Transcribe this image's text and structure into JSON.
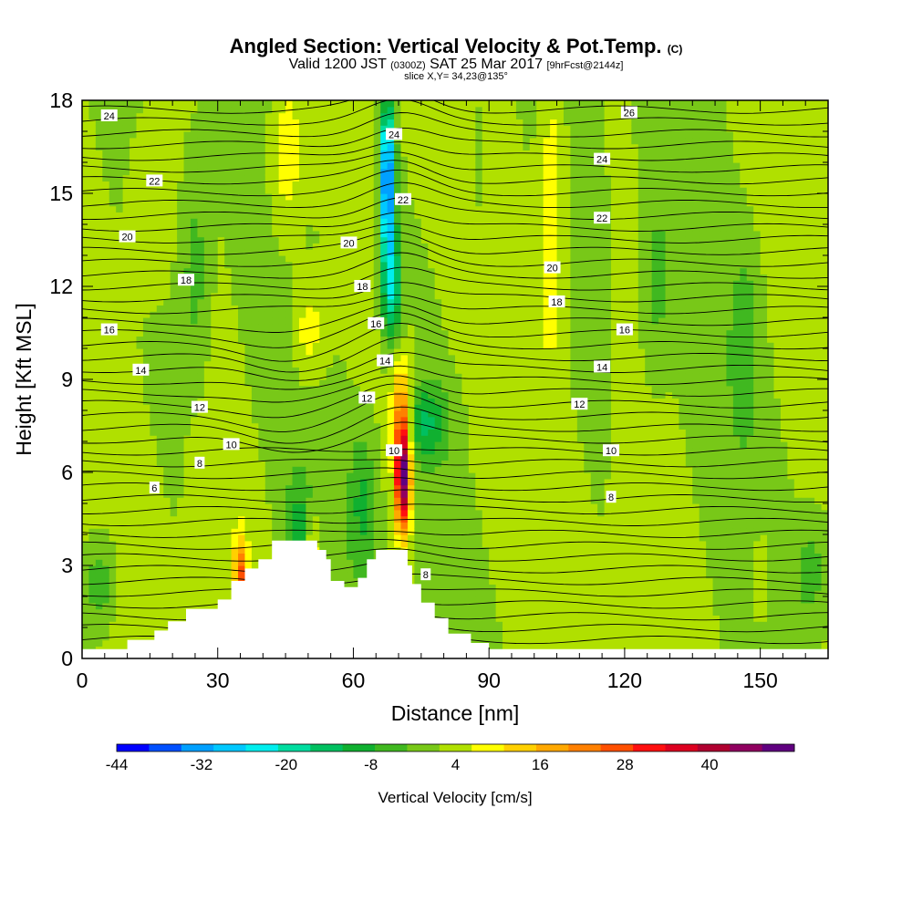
{
  "title": {
    "main": "Angled Section: Vertical Velocity & Pot.Temp.",
    "units": "(C)",
    "valid": "Valid 1200 JST",
    "zulu": "(0300Z)",
    "date": "SAT 25 Mar 2017",
    "fcst": "[9hrFcst@2144z]",
    "slice": "slice X,Y= 34,23@135°"
  },
  "chart_data": {
    "type": "heatmap",
    "xlabel": "Distance [nm]",
    "ylabel": "Height [Kft MSL]",
    "xlim": [
      0,
      165
    ],
    "ylim": [
      0,
      18
    ],
    "x_ticks": [
      0,
      30,
      60,
      90,
      120,
      150
    ],
    "y_ticks": [
      0,
      3,
      6,
      9,
      12,
      15,
      18
    ],
    "colorbar": {
      "label": "Vertical Velocity [cm/s]",
      "range": [
        -44,
        52
      ],
      "tick_values": [
        -44,
        -32,
        -20,
        -8,
        4,
        16,
        28,
        40
      ],
      "colors": [
        "#0000ff",
        "#0050ff",
        "#00a0ff",
        "#00c8ff",
        "#00eeee",
        "#00dda0",
        "#00c060",
        "#10b030",
        "#40b820",
        "#78c818",
        "#b0e000",
        "#ffff00",
        "#ffd000",
        "#ffa800",
        "#ff8000",
        "#ff5000",
        "#ff1010",
        "#dd0020",
        "#b00030",
        "#900060",
        "#600080"
      ]
    },
    "terrain_nm_kft": [
      [
        0,
        0.3
      ],
      [
        10,
        0.3
      ],
      [
        10,
        0.6
      ],
      [
        16,
        0.6
      ],
      [
        16,
        0.9
      ],
      [
        19,
        0.9
      ],
      [
        19,
        1.2
      ],
      [
        23,
        1.2
      ],
      [
        23,
        1.6
      ],
      [
        30,
        1.6
      ],
      [
        30,
        1.9
      ],
      [
        33,
        1.9
      ],
      [
        33,
        2.5
      ],
      [
        36,
        2.5
      ],
      [
        36,
        2.9
      ],
      [
        39,
        2.9
      ],
      [
        39,
        3.2
      ],
      [
        42,
        3.2
      ],
      [
        42,
        3.8
      ],
      [
        52,
        3.8
      ],
      [
        52,
        3.5
      ],
      [
        54,
        3.5
      ],
      [
        54,
        3.2
      ],
      [
        55,
        3.2
      ],
      [
        55,
        2.5
      ],
      [
        58,
        2.5
      ],
      [
        58,
        2.3
      ],
      [
        61,
        2.3
      ],
      [
        61,
        2.6
      ],
      [
        63,
        2.6
      ],
      [
        63,
        3.2
      ],
      [
        65,
        3.2
      ],
      [
        65,
        3.5
      ],
      [
        72,
        3.5
      ],
      [
        72,
        3.0
      ],
      [
        73,
        3.0
      ],
      [
        73,
        2.4
      ],
      [
        75,
        2.4
      ],
      [
        75,
        1.8
      ],
      [
        78,
        1.8
      ],
      [
        78,
        1.3
      ],
      [
        81,
        1.3
      ],
      [
        81,
        0.8
      ],
      [
        86,
        0.8
      ],
      [
        86,
        0.5
      ],
      [
        90,
        0.5
      ],
      [
        90,
        0.3
      ],
      [
        165,
        0.3
      ]
    ],
    "isentrope_labels": [
      {
        "value": "24",
        "x": 6,
        "y": 17.5
      },
      {
        "value": "22",
        "x": 16,
        "y": 15.4
      },
      {
        "value": "20",
        "x": 10,
        "y": 13.6
      },
      {
        "value": "18",
        "x": 23,
        "y": 12.2
      },
      {
        "value": "16",
        "x": 6,
        "y": 10.6
      },
      {
        "value": "14",
        "x": 13,
        "y": 9.3
      },
      {
        "value": "12",
        "x": 26,
        "y": 8.1
      },
      {
        "value": "10",
        "x": 33,
        "y": 6.9
      },
      {
        "value": "8",
        "x": 26,
        "y": 6.3
      },
      {
        "value": "6",
        "x": 16,
        "y": 5.5
      },
      {
        "value": "24",
        "x": 69,
        "y": 16.9
      },
      {
        "value": "22",
        "x": 71,
        "y": 14.8
      },
      {
        "value": "20",
        "x": 59,
        "y": 13.4
      },
      {
        "value": "18",
        "x": 62,
        "y": 12.0
      },
      {
        "value": "16",
        "x": 65,
        "y": 10.8
      },
      {
        "value": "14",
        "x": 67,
        "y": 9.6
      },
      {
        "value": "12",
        "x": 63,
        "y": 8.4
      },
      {
        "value": "10",
        "x": 69,
        "y": 6.7
      },
      {
        "value": "8",
        "x": 76,
        "y": 2.7
      },
      {
        "value": "26",
        "x": 121,
        "y": 17.6
      },
      {
        "value": "24",
        "x": 115,
        "y": 16.1
      },
      {
        "value": "22",
        "x": 115,
        "y": 14.2
      },
      {
        "value": "20",
        "x": 104,
        "y": 12.6
      },
      {
        "value": "18",
        "x": 105,
        "y": 11.5
      },
      {
        "value": "16",
        "x": 120,
        "y": 10.6
      },
      {
        "value": "14",
        "x": 115,
        "y": 9.4
      },
      {
        "value": "12",
        "x": 110,
        "y": 8.2
      },
      {
        "value": "10",
        "x": 117,
        "y": 6.7
      },
      {
        "value": "8",
        "x": 117,
        "y": 5.2
      }
    ]
  }
}
